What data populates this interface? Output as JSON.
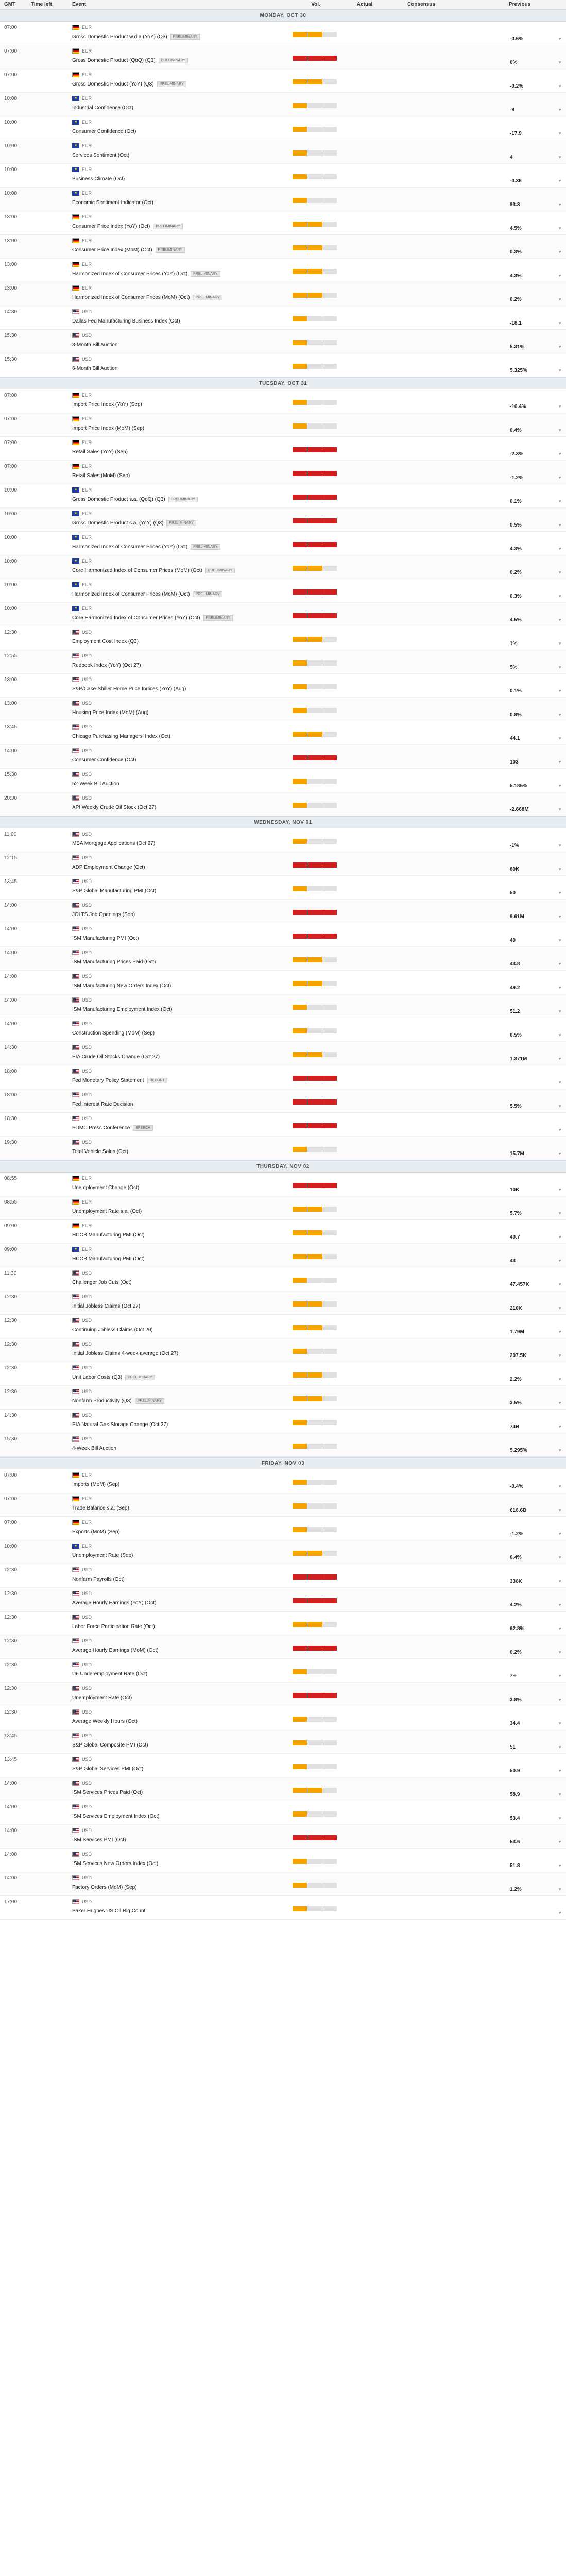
{
  "header": {
    "gmt": "GMT",
    "time_left": "Time left",
    "event": "Event",
    "vol": "Vol.",
    "actual": "Actual",
    "consensus": "Consensus",
    "previous": "Previous"
  },
  "colors": {
    "vol_mid": "#f5a300",
    "vol_high": "#d21f1f",
    "vol_empty": "#e0e0e0"
  },
  "days": [
    {
      "label": "MONDAY, OCT 30",
      "events": [
        {
          "time": "07:00",
          "country": "de",
          "ccy": "EUR",
          "title": "Gross Domestic Product w.d.a (YoY) (Q3)",
          "badge": "PRELIMINARY",
          "vol": 2,
          "prev": "-0.6%"
        },
        {
          "time": "07:00",
          "country": "de",
          "ccy": "EUR",
          "title": "Gross Domestic Product (QoQ) (Q3)",
          "badge": "PRELIMINARY",
          "vol": 3,
          "prev": "0%"
        },
        {
          "time": "07:00",
          "country": "de",
          "ccy": "EUR",
          "title": "Gross Domestic Product (YoY) (Q3)",
          "badge": "PRELIMINARY",
          "vol": 2,
          "prev": "-0.2%"
        },
        {
          "time": "10:00",
          "country": "eu",
          "ccy": "EUR",
          "title": "Industrial Confidence (Oct)",
          "badge": "",
          "vol": 1,
          "prev": "-9"
        },
        {
          "time": "10:00",
          "country": "eu",
          "ccy": "EUR",
          "title": "Consumer Confidence (Oct)",
          "badge": "",
          "vol": 1,
          "prev": "-17.9"
        },
        {
          "time": "10:00",
          "country": "eu",
          "ccy": "EUR",
          "title": "Services Sentiment (Oct)",
          "badge": "",
          "vol": 1,
          "prev": "4"
        },
        {
          "time": "10:00",
          "country": "eu",
          "ccy": "EUR",
          "title": "Business Climate (Oct)",
          "badge": "",
          "vol": 1,
          "prev": "-0.36"
        },
        {
          "time": "10:00",
          "country": "eu",
          "ccy": "EUR",
          "title": "Economic Sentiment Indicator (Oct)",
          "badge": "",
          "vol": 1,
          "prev": "93.3"
        },
        {
          "time": "13:00",
          "country": "de",
          "ccy": "EUR",
          "title": "Consumer Price Index (YoY) (Oct)",
          "badge": "PRELIMINARY",
          "vol": 2,
          "prev": "4.5%"
        },
        {
          "time": "13:00",
          "country": "de",
          "ccy": "EUR",
          "title": "Consumer Price Index (MoM) (Oct)",
          "badge": "PRELIMINARY",
          "vol": 2,
          "prev": "0.3%"
        },
        {
          "time": "13:00",
          "country": "de",
          "ccy": "EUR",
          "title": "Harmonized Index of Consumer Prices (YoY) (Oct)",
          "badge": "PRELIMINARY",
          "vol": 2,
          "prev": "4.3%"
        },
        {
          "time": "13:00",
          "country": "de",
          "ccy": "EUR",
          "title": "Harmonized Index of Consumer Prices (MoM) (Oct)",
          "badge": "PRELIMINARY",
          "vol": 2,
          "prev": "0.2%"
        },
        {
          "time": "14:30",
          "country": "us",
          "ccy": "USD",
          "title": "Dallas Fed Manufacturing Business Index (Oct)",
          "badge": "",
          "vol": 1,
          "prev": "-18.1"
        },
        {
          "time": "15:30",
          "country": "us",
          "ccy": "USD",
          "title": "3-Month Bill Auction",
          "badge": "",
          "vol": 1,
          "prev": "5.31%"
        },
        {
          "time": "15:30",
          "country": "us",
          "ccy": "USD",
          "title": "6-Month Bill Auction",
          "badge": "",
          "vol": 1,
          "prev": "5.325%"
        }
      ]
    },
    {
      "label": "TUESDAY, OCT 31",
      "events": [
        {
          "time": "07:00",
          "country": "de",
          "ccy": "EUR",
          "title": "Import Price Index (YoY) (Sep)",
          "badge": "",
          "vol": 1,
          "prev": "-16.4%"
        },
        {
          "time": "07:00",
          "country": "de",
          "ccy": "EUR",
          "title": "Import Price Index (MoM) (Sep)",
          "badge": "",
          "vol": 1,
          "prev": "0.4%"
        },
        {
          "time": "07:00",
          "country": "de",
          "ccy": "EUR",
          "title": "Retail Sales (YoY) (Sep)",
          "badge": "",
          "vol": 3,
          "prev": "-2.3%"
        },
        {
          "time": "07:00",
          "country": "de",
          "ccy": "EUR",
          "title": "Retail Sales (MoM) (Sep)",
          "badge": "",
          "vol": 3,
          "prev": "-1.2%"
        },
        {
          "time": "10:00",
          "country": "eu",
          "ccy": "EUR",
          "title": "Gross Domestic Product s.a. (QoQ) (Q3)",
          "badge": "PRELIMINARY",
          "vol": 3,
          "prev": "0.1%"
        },
        {
          "time": "10:00",
          "country": "eu",
          "ccy": "EUR",
          "title": "Gross Domestic Product s.a. (YoY) (Q3)",
          "badge": "PRELIMINARY",
          "vol": 3,
          "prev": "0.5%"
        },
        {
          "time": "10:00",
          "country": "eu",
          "ccy": "EUR",
          "title": "Harmonized Index of Consumer Prices (YoY) (Oct)",
          "badge": "PRELIMINARY",
          "vol": 3,
          "prev": "4.3%"
        },
        {
          "time": "10:00",
          "country": "eu",
          "ccy": "EUR",
          "title": "Core Harmonized Index of Consumer Prices (MoM) (Oct)",
          "badge": "PRELIMINARY",
          "vol": 2,
          "prev": "0.2%"
        },
        {
          "time": "10:00",
          "country": "eu",
          "ccy": "EUR",
          "title": "Harmonized Index of Consumer Prices (MoM) (Oct)",
          "badge": "PRELIMINARY",
          "vol": 3,
          "prev": "0.3%"
        },
        {
          "time": "10:00",
          "country": "eu",
          "ccy": "EUR",
          "title": "Core Harmonized Index of Consumer Prices (YoY) (Oct)",
          "badge": "PRELIMINARY",
          "vol": 3,
          "prev": "4.5%"
        },
        {
          "time": "12:30",
          "country": "us",
          "ccy": "USD",
          "title": "Employment Cost Index (Q3)",
          "badge": "",
          "vol": 2,
          "prev": "1%"
        },
        {
          "time": "12:55",
          "country": "us",
          "ccy": "USD",
          "title": "Redbook Index (YoY) (Oct 27)",
          "badge": "",
          "vol": 1,
          "prev": "5%"
        },
        {
          "time": "13:00",
          "country": "us",
          "ccy": "USD",
          "title": "S&P/Case-Shiller Home Price Indices (YoY) (Aug)",
          "badge": "",
          "vol": 1,
          "prev": "0.1%"
        },
        {
          "time": "13:00",
          "country": "us",
          "ccy": "USD",
          "title": "Housing Price Index (MoM) (Aug)",
          "badge": "",
          "vol": 1,
          "prev": "0.8%"
        },
        {
          "time": "13:45",
          "country": "us",
          "ccy": "USD",
          "title": "Chicago Purchasing Managers' Index (Oct)",
          "badge": "",
          "vol": 2,
          "prev": "44.1"
        },
        {
          "time": "14:00",
          "country": "us",
          "ccy": "USD",
          "title": "Consumer Confidence (Oct)",
          "badge": "",
          "vol": 3,
          "prev": "103"
        },
        {
          "time": "15:30",
          "country": "us",
          "ccy": "USD",
          "title": "52-Week Bill Auction",
          "badge": "",
          "vol": 1,
          "prev": "5.185%"
        },
        {
          "time": "20:30",
          "country": "us",
          "ccy": "USD",
          "title": "API Weekly Crude Oil Stock (Oct 27)",
          "badge": "",
          "vol": 1,
          "prev": "-2.668M"
        }
      ]
    },
    {
      "label": "WEDNESDAY, NOV 01",
      "events": [
        {
          "time": "11:00",
          "country": "us",
          "ccy": "USD",
          "title": "MBA Mortgage Applications (Oct 27)",
          "badge": "",
          "vol": 1,
          "prev": "-1%"
        },
        {
          "time": "12:15",
          "country": "us",
          "ccy": "USD",
          "title": "ADP Employment Change (Oct)",
          "badge": "",
          "vol": 3,
          "prev": "89K"
        },
        {
          "time": "13:45",
          "country": "us",
          "ccy": "USD",
          "title": "S&P Global Manufacturing PMI (Oct)",
          "badge": "",
          "vol": 1,
          "prev": "50"
        },
        {
          "time": "14:00",
          "country": "us",
          "ccy": "USD",
          "title": "JOLTS Job Openings (Sep)",
          "badge": "",
          "vol": 3,
          "prev": "9.61M"
        },
        {
          "time": "14:00",
          "country": "us",
          "ccy": "USD",
          "title": "ISM Manufacturing PMI (Oct)",
          "badge": "",
          "vol": 3,
          "prev": "49"
        },
        {
          "time": "14:00",
          "country": "us",
          "ccy": "USD",
          "title": "ISM Manufacturing Prices Paid (Oct)",
          "badge": "",
          "vol": 2,
          "prev": "43.8"
        },
        {
          "time": "14:00",
          "country": "us",
          "ccy": "USD",
          "title": "ISM Manufacturing New Orders Index (Oct)",
          "badge": "",
          "vol": 2,
          "prev": "49.2"
        },
        {
          "time": "14:00",
          "country": "us",
          "ccy": "USD",
          "title": "ISM Manufacturing Employment Index (Oct)",
          "badge": "",
          "vol": 1,
          "prev": "51.2"
        },
        {
          "time": "14:00",
          "country": "us",
          "ccy": "USD",
          "title": "Construction Spending (MoM) (Sep)",
          "badge": "",
          "vol": 1,
          "prev": "0.5%"
        },
        {
          "time": "14:30",
          "country": "us",
          "ccy": "USD",
          "title": "EIA Crude Oil Stocks Change (Oct 27)",
          "badge": "",
          "vol": 2,
          "prev": "1.371M"
        },
        {
          "time": "18:00",
          "country": "us",
          "ccy": "USD",
          "title": "Fed Monetary Policy Statement",
          "badge": "REPORT",
          "vol": 3,
          "prev": ""
        },
        {
          "time": "18:00",
          "country": "us",
          "ccy": "USD",
          "title": "Fed Interest Rate Decision",
          "badge": "",
          "vol": 3,
          "prev": "5.5%"
        },
        {
          "time": "18:30",
          "country": "us",
          "ccy": "USD",
          "title": "FOMC Press Conference",
          "badge": "SPEECH",
          "vol": 3,
          "prev": ""
        },
        {
          "time": "19:30",
          "country": "us",
          "ccy": "USD",
          "title": "Total Vehicle Sales (Oct)",
          "badge": "",
          "vol": 1,
          "prev": "15.7M"
        }
      ]
    },
    {
      "label": "THURSDAY, NOV 02",
      "events": [
        {
          "time": "08:55",
          "country": "de",
          "ccy": "EUR",
          "title": "Unemployment Change (Oct)",
          "badge": "",
          "vol": 3,
          "prev": "10K"
        },
        {
          "time": "08:55",
          "country": "de",
          "ccy": "EUR",
          "title": "Unemployment Rate s.a. (Oct)",
          "badge": "",
          "vol": 2,
          "prev": "5.7%"
        },
        {
          "time": "09:00",
          "country": "de",
          "ccy": "EUR",
          "title": "HCOB Manufacturing PMI (Oct)",
          "badge": "",
          "vol": 2,
          "prev": "40.7"
        },
        {
          "time": "09:00",
          "country": "eu",
          "ccy": "EUR",
          "title": "HCOB Manufacturing PMI (Oct)",
          "badge": "",
          "vol": 2,
          "prev": "43"
        },
        {
          "time": "11:30",
          "country": "us",
          "ccy": "USD",
          "title": "Challenger Job Cuts (Oct)",
          "badge": "",
          "vol": 1,
          "prev": "47.457K"
        },
        {
          "time": "12:30",
          "country": "us",
          "ccy": "USD",
          "title": "Initial Jobless Claims (Oct 27)",
          "badge": "",
          "vol": 2,
          "prev": "210K"
        },
        {
          "time": "12:30",
          "country": "us",
          "ccy": "USD",
          "title": "Continuing Jobless Claims (Oct 20)",
          "badge": "",
          "vol": 2,
          "prev": "1.79M"
        },
        {
          "time": "12:30",
          "country": "us",
          "ccy": "USD",
          "title": "Initial Jobless Claims 4-week average (Oct 27)",
          "badge": "",
          "vol": 1,
          "prev": "207.5K"
        },
        {
          "time": "12:30",
          "country": "us",
          "ccy": "USD",
          "title": "Unit Labor Costs (Q3)",
          "badge": "PRELIMINARY",
          "vol": 2,
          "prev": "2.2%"
        },
        {
          "time": "12:30",
          "country": "us",
          "ccy": "USD",
          "title": "Nonfarm Productivity (Q3)",
          "badge": "PRELIMINARY",
          "vol": 2,
          "prev": "3.5%"
        },
        {
          "time": "14:30",
          "country": "us",
          "ccy": "USD",
          "title": "EIA Natural Gas Storage Change (Oct 27)",
          "badge": "",
          "vol": 1,
          "prev": "74B"
        },
        {
          "time": "15:30",
          "country": "us",
          "ccy": "USD",
          "title": "4-Week Bill Auction",
          "badge": "",
          "vol": 1,
          "prev": "5.295%"
        }
      ]
    },
    {
      "label": "FRIDAY, NOV 03",
      "events": [
        {
          "time": "07:00",
          "country": "de",
          "ccy": "EUR",
          "title": "Imports (MoM) (Sep)",
          "badge": "",
          "vol": 1,
          "prev": "-0.4%"
        },
        {
          "time": "07:00",
          "country": "de",
          "ccy": "EUR",
          "title": "Trade Balance s.a. (Sep)",
          "badge": "",
          "vol": 1,
          "prev": "€16.6B"
        },
        {
          "time": "07:00",
          "country": "de",
          "ccy": "EUR",
          "title": "Exports (MoM) (Sep)",
          "badge": "",
          "vol": 1,
          "prev": "-1.2%"
        },
        {
          "time": "10:00",
          "country": "eu",
          "ccy": "EUR",
          "title": "Unemployment Rate (Sep)",
          "badge": "",
          "vol": 2,
          "prev": "6.4%"
        },
        {
          "time": "12:30",
          "country": "us",
          "ccy": "USD",
          "title": "Nonfarm Payrolls (Oct)",
          "badge": "",
          "vol": 3,
          "prev": "336K"
        },
        {
          "time": "12:30",
          "country": "us",
          "ccy": "USD",
          "title": "Average Hourly Earnings (YoY) (Oct)",
          "badge": "",
          "vol": 3,
          "prev": "4.2%"
        },
        {
          "time": "12:30",
          "country": "us",
          "ccy": "USD",
          "title": "Labor Force Participation Rate (Oct)",
          "badge": "",
          "vol": 2,
          "prev": "62.8%"
        },
        {
          "time": "12:30",
          "country": "us",
          "ccy": "USD",
          "title": "Average Hourly Earnings (MoM) (Oct)",
          "badge": "",
          "vol": 3,
          "prev": "0.2%"
        },
        {
          "time": "12:30",
          "country": "us",
          "ccy": "USD",
          "title": "U6 Underemployment Rate (Oct)",
          "badge": "",
          "vol": 1,
          "prev": "7%"
        },
        {
          "time": "12:30",
          "country": "us",
          "ccy": "USD",
          "title": "Unemployment Rate (Oct)",
          "badge": "",
          "vol": 3,
          "prev": "3.8%"
        },
        {
          "time": "12:30",
          "country": "us",
          "ccy": "USD",
          "title": "Average Weekly Hours (Oct)",
          "badge": "",
          "vol": 1,
          "prev": "34.4"
        },
        {
          "time": "13:45",
          "country": "us",
          "ccy": "USD",
          "title": "S&P Global Composite PMI (Oct)",
          "badge": "",
          "vol": 1,
          "prev": "51"
        },
        {
          "time": "13:45",
          "country": "us",
          "ccy": "USD",
          "title": "S&P Global Services PMI (Oct)",
          "badge": "",
          "vol": 1,
          "prev": "50.9"
        },
        {
          "time": "14:00",
          "country": "us",
          "ccy": "USD",
          "title": "ISM Services Prices Paid (Oct)",
          "badge": "",
          "vol": 2,
          "prev": "58.9"
        },
        {
          "time": "14:00",
          "country": "us",
          "ccy": "USD",
          "title": "ISM Services Employment Index (Oct)",
          "badge": "",
          "vol": 1,
          "prev": "53.4"
        },
        {
          "time": "14:00",
          "country": "us",
          "ccy": "USD",
          "title": "ISM Services PMI (Oct)",
          "badge": "",
          "vol": 3,
          "prev": "53.6"
        },
        {
          "time": "14:00",
          "country": "us",
          "ccy": "USD",
          "title": "ISM Services New Orders Index (Oct)",
          "badge": "",
          "vol": 1,
          "prev": "51.8"
        },
        {
          "time": "14:00",
          "country": "us",
          "ccy": "USD",
          "title": "Factory Orders (MoM) (Sep)",
          "badge": "",
          "vol": 1,
          "prev": "1.2%"
        },
        {
          "time": "17:00",
          "country": "us",
          "ccy": "USD",
          "title": "Baker Hughes US Oil Rig Count",
          "badge": "",
          "vol": 1,
          "prev": ""
        }
      ]
    }
  ]
}
